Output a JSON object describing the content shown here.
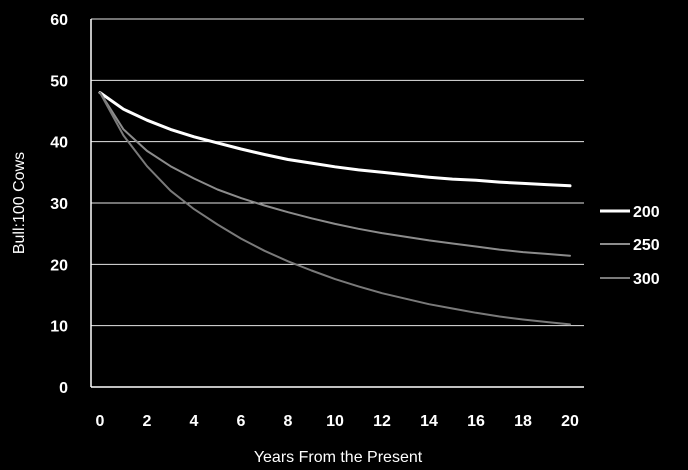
{
  "chart_data": {
    "type": "line",
    "title": "",
    "xlabel": "Years From the Present",
    "ylabel": "Bull:100 Cows",
    "xlim": [
      0,
      20
    ],
    "ylim": [
      0,
      60
    ],
    "x_ticks": [
      "0",
      "2",
      "4",
      "6",
      "8",
      "10",
      "12",
      "14",
      "16",
      "18",
      "20"
    ],
    "y_ticks": [
      "0",
      "10",
      "20",
      "30",
      "40",
      "50",
      "60"
    ],
    "grid": true,
    "legend_position": "right",
    "x": [
      0,
      1,
      2,
      3,
      4,
      5,
      6,
      7,
      8,
      9,
      10,
      11,
      12,
      13,
      14,
      15,
      16,
      17,
      18,
      19,
      20
    ],
    "series": [
      {
        "name": "200",
        "color": "#ffffff",
        "values": [
          48,
          45.3,
          43.5,
          42,
          40.8,
          39.8,
          38.8,
          37.9,
          37.1,
          36.5,
          35.9,
          35.4,
          35,
          34.6,
          34.2,
          33.9,
          33.7,
          33.4,
          33.2,
          33,
          32.8
        ]
      },
      {
        "name": "250",
        "color": "#8c8c8c",
        "values": [
          48,
          42,
          38.5,
          36,
          34,
          32.2,
          30.8,
          29.6,
          28.5,
          27.5,
          26.6,
          25.8,
          25.1,
          24.5,
          23.9,
          23.4,
          22.9,
          22.4,
          22,
          21.7,
          21.4
        ]
      },
      {
        "name": "300",
        "color": "#7a7a7a",
        "values": [
          48,
          41,
          36,
          32,
          29,
          26.5,
          24.2,
          22.2,
          20.5,
          19,
          17.6,
          16.4,
          15.3,
          14.4,
          13.5,
          12.8,
          12.1,
          11.5,
          11,
          10.6,
          10.2
        ]
      }
    ]
  }
}
